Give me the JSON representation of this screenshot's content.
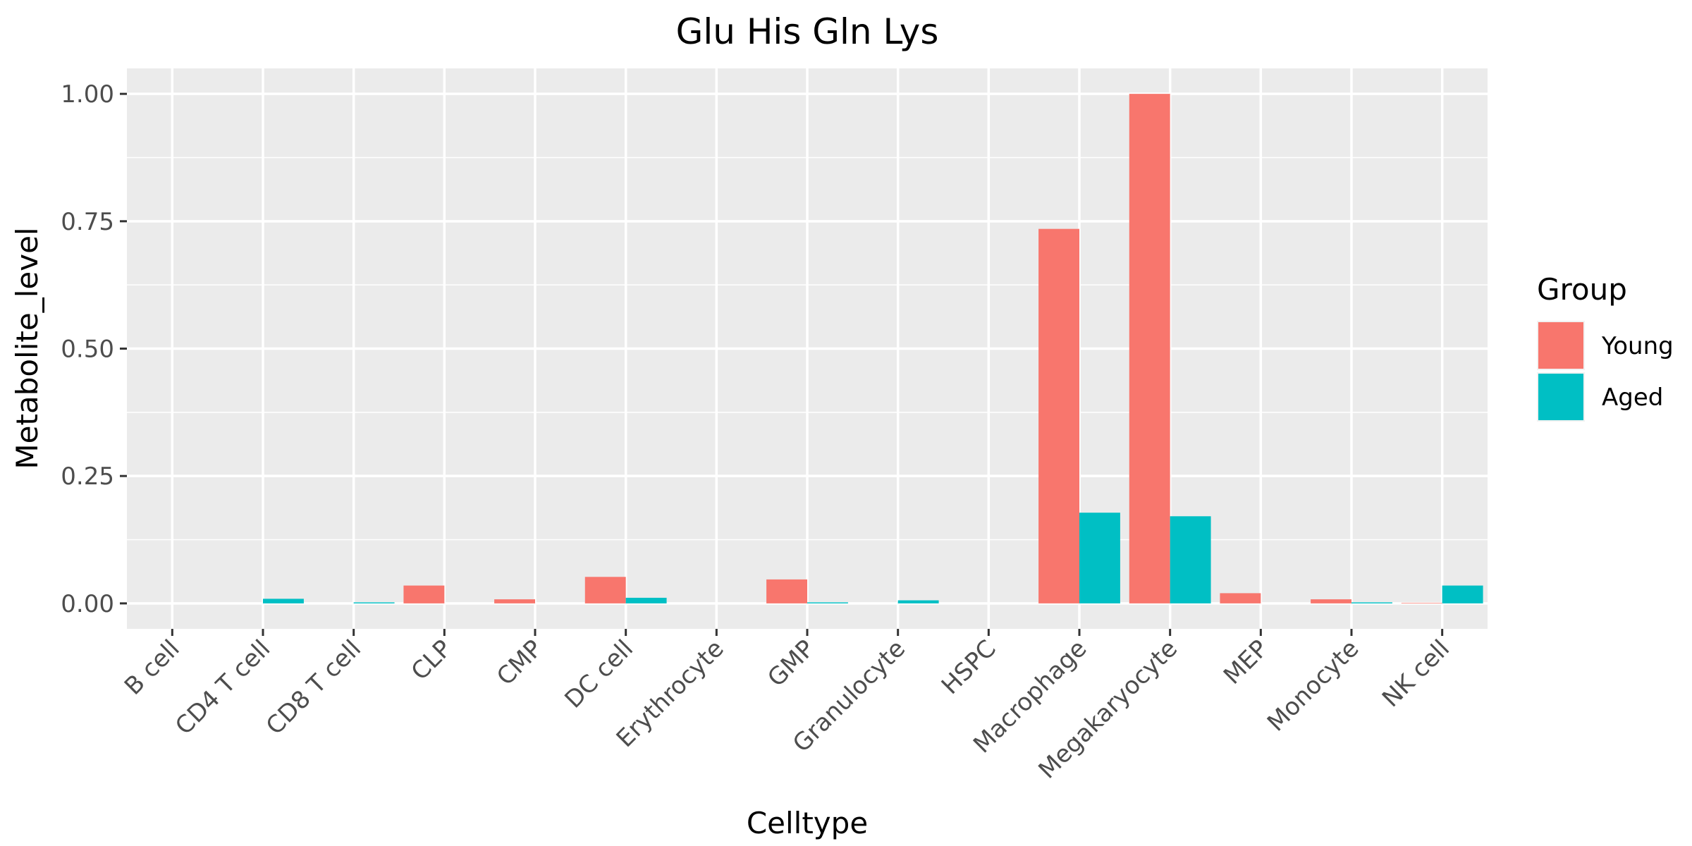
{
  "chart_data": {
    "type": "bar",
    "title": "Glu His Gln Lys",
    "xlabel": "Celltype",
    "ylabel": "Metabolite_level",
    "categories": [
      "B cell",
      "CD4 T cell",
      "CD8 T cell",
      "CLP",
      "CMP",
      "DC cell",
      "Erythrocyte",
      "GMP",
      "Granulocyte",
      "HSPC",
      "Macrophage",
      "Megakaryocyte",
      "MEP",
      "Monocyte",
      "NK cell"
    ],
    "series": [
      {
        "name": "Young",
        "color": "#F8766D",
        "values": [
          0,
          0,
          0,
          0.035,
          0.008,
          0.052,
          0,
          0.047,
          0,
          0,
          0.735,
          1.0,
          0.02,
          0.008,
          0.001
        ]
      },
      {
        "name": "Aged",
        "color": "#00BFC4",
        "values": [
          0,
          0.009,
          0.002,
          0,
          0,
          0.011,
          0,
          0.002,
          0.006,
          0,
          0.178,
          0.171,
          0,
          0.002,
          0.035
        ]
      }
    ],
    "ylim": [
      -0.05,
      1.05
    ],
    "yticks": [
      0.0,
      0.25,
      0.5,
      0.75,
      1.0
    ],
    "ytick_labels": [
      "0.00",
      "0.25",
      "0.50",
      "0.75",
      "1.00"
    ],
    "legend": {
      "title": "Group",
      "position": "right"
    },
    "grid": true
  }
}
